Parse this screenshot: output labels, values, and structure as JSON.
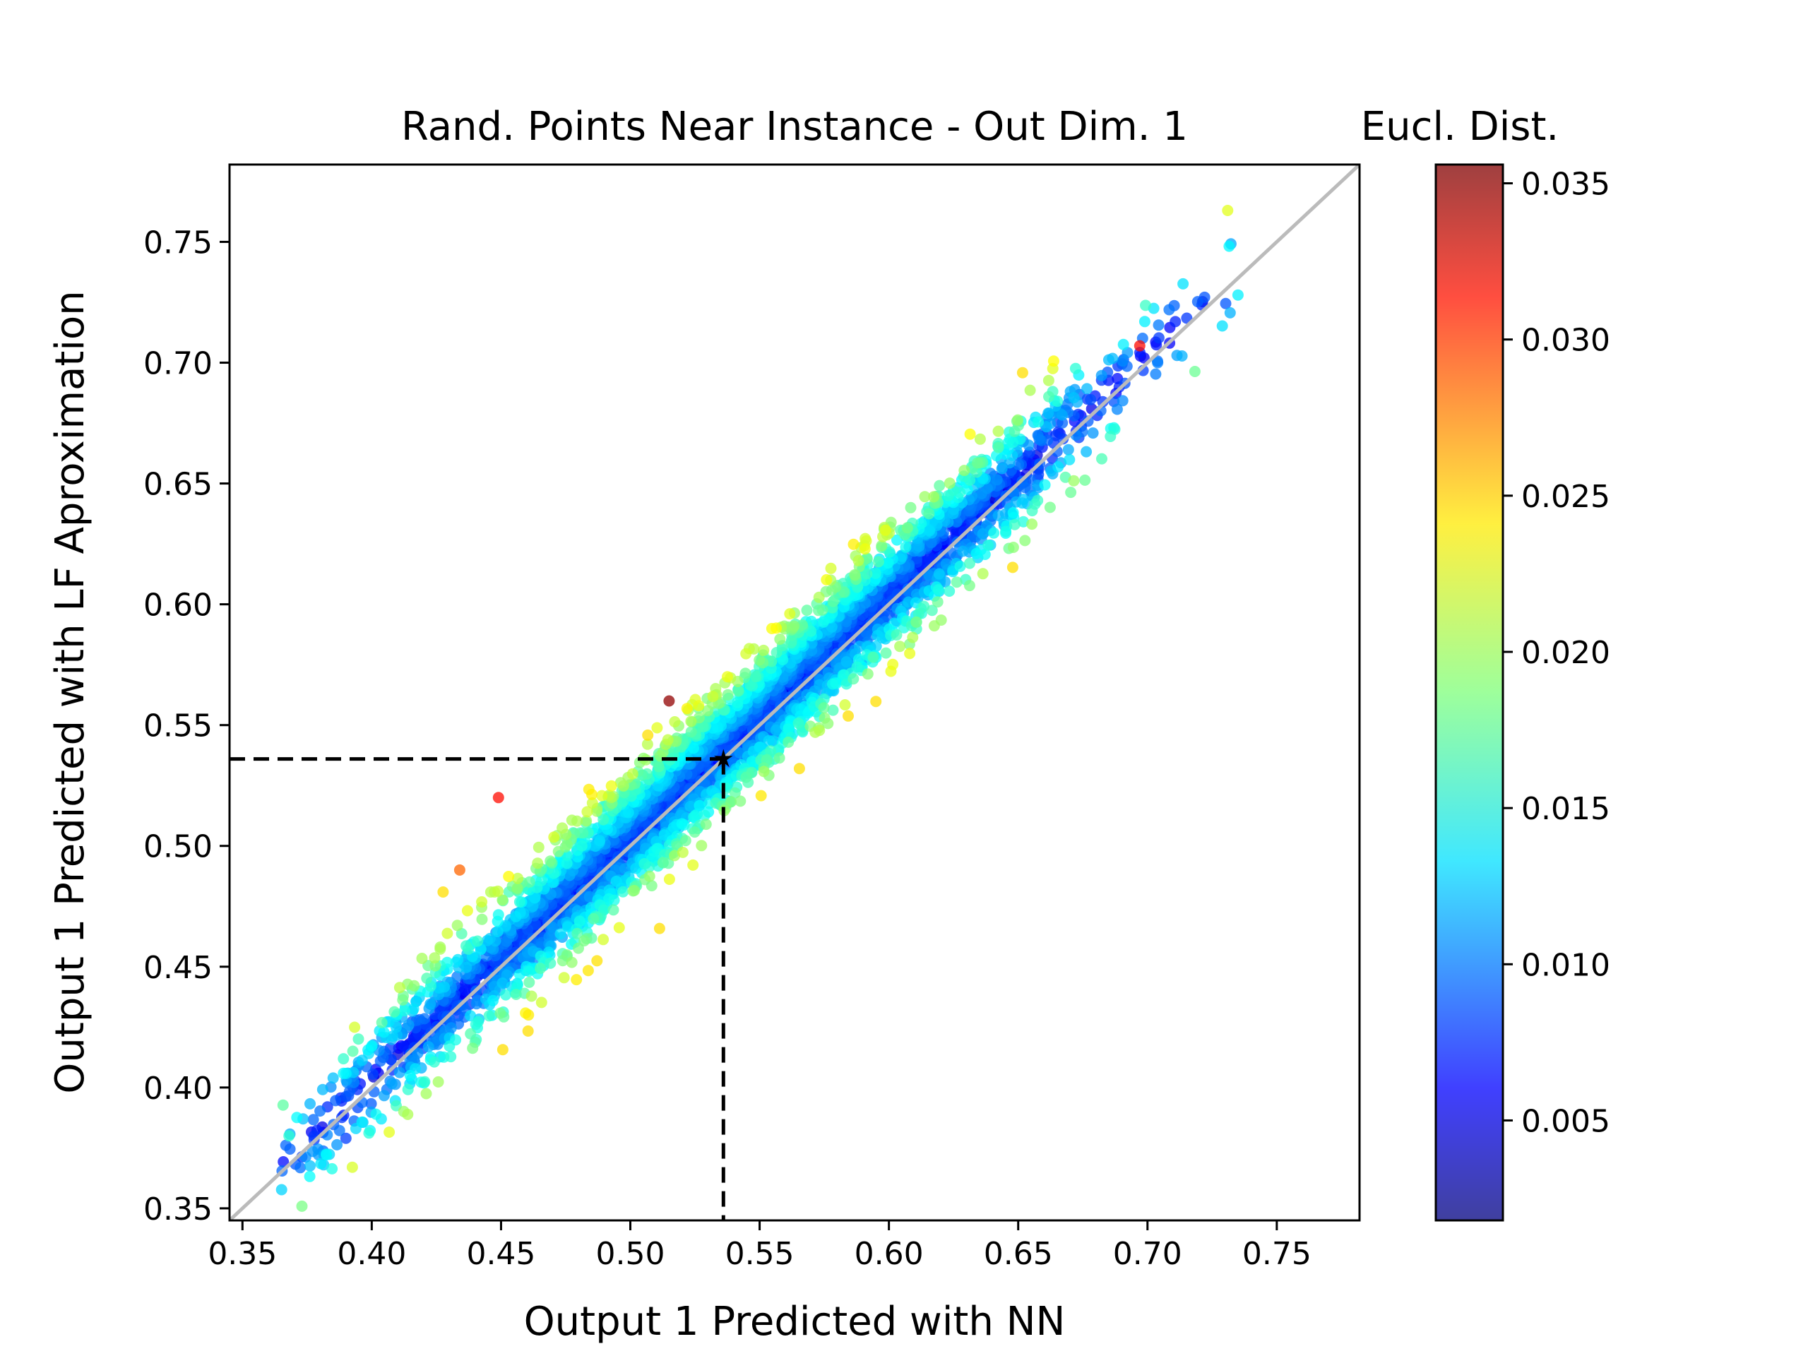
{
  "chart_data": {
    "type": "scatter",
    "title": "Rand. Points Near Instance - Out Dim. 1",
    "xlabel": "Output 1 Predicted with NN",
    "ylabel": "Output 1 Predicted with LF Aproximation",
    "xlim": [
      0.345,
      0.782
    ],
    "ylim": [
      0.345,
      0.782
    ],
    "x_ticks": [
      "0.35",
      "0.40",
      "0.45",
      "0.50",
      "0.55",
      "0.60",
      "0.65",
      "0.70",
      "0.75"
    ],
    "y_ticks": [
      "0.35",
      "0.40",
      "0.45",
      "0.50",
      "0.55",
      "0.60",
      "0.65",
      "0.70",
      "0.75"
    ],
    "grid": false,
    "colormap": "jet",
    "colorbar": {
      "label": "Eucl. Dist.",
      "range": [
        0.0018,
        0.0356
      ],
      "ticks": [
        "0.005",
        "0.010",
        "0.015",
        "0.020",
        "0.025",
        "0.030",
        "0.035"
      ]
    },
    "reference_line": {
      "label": "y = x",
      "color": "#bbbbbb"
    },
    "instance_point": {
      "x": 0.536,
      "y": 0.536,
      "marker": "star"
    },
    "cloud_description": {
      "n_points": 4500,
      "x_range": [
        0.365,
        0.735
      ],
      "spread_about_diagonal": 0.012,
      "upper_side_bias": 0.006
    },
    "notable_points": [
      {
        "x": 0.697,
        "y": 0.707,
        "dist": 0.031
      },
      {
        "x": 0.449,
        "y": 0.52,
        "dist": 0.031
      },
      {
        "x": 0.515,
        "y": 0.56,
        "dist": 0.035
      },
      {
        "x": 0.731,
        "y": 0.763,
        "dist": 0.022
      },
      {
        "x": 0.735,
        "y": 0.728,
        "dist": 0.014
      },
      {
        "x": 0.434,
        "y": 0.49,
        "dist": 0.028
      },
      {
        "x": 0.368,
        "y": 0.38,
        "dist": 0.016
      },
      {
        "x": 0.39,
        "y": 0.379,
        "dist": 0.008
      }
    ]
  },
  "colors": {
    "diagonal": "#bbbbbb",
    "guide_lines": "#000000",
    "frame": "#000000"
  }
}
